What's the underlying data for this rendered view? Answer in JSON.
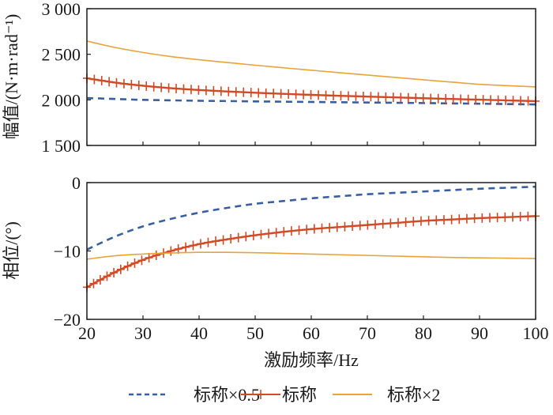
{
  "chart_data": [
    {
      "type": "line",
      "ylabel": "幅值/(N·m·rad⁻¹)",
      "xlabel": "",
      "xlim": [
        20,
        100
      ],
      "ylim": [
        1500,
        3000
      ],
      "yticks": [
        1500,
        2000,
        2500,
        3000
      ],
      "ytick_labels": [
        "1 500",
        "2 000",
        "2 500",
        "3 000"
      ],
      "xticks": [
        20,
        30,
        40,
        50,
        60,
        70,
        80,
        90,
        100
      ],
      "x": [
        20,
        25,
        30,
        35,
        40,
        45,
        50,
        55,
        60,
        65,
        70,
        75,
        80,
        85,
        90,
        95,
        100
      ],
      "series": [
        {
          "name": "标称×0.5",
          "values": [
            2020,
            2010,
            2000,
            1995,
            1990,
            1987,
            1983,
            1980,
            1977,
            1974,
            1971,
            1968,
            1965,
            1961,
            1958,
            1954,
            1950
          ]
        },
        {
          "name": "标称",
          "values": [
            2237,
            2190,
            2155,
            2128,
            2108,
            2092,
            2078,
            2066,
            2055,
            2045,
            2036,
            2027,
            2018,
            2010,
            2002,
            1994,
            1986
          ]
        },
        {
          "name": "标称×2",
          "values": [
            2645,
            2575,
            2520,
            2475,
            2440,
            2410,
            2380,
            2352,
            2325,
            2298,
            2272,
            2246,
            2220,
            2195,
            2170,
            2156,
            2142
          ]
        }
      ],
      "grid": false
    },
    {
      "type": "line",
      "ylabel": "相位/(°)",
      "xlabel": "激励频率/Hz",
      "xlim": [
        20,
        100
      ],
      "ylim": [
        -20,
        0
      ],
      "yticks": [
        -20,
        -10,
        0
      ],
      "ytick_labels": [
        "−20",
        "−10",
        "0"
      ],
      "xticks": [
        20,
        30,
        40,
        50,
        60,
        70,
        80,
        90,
        100
      ],
      "xtick_labels": [
        "20",
        "30",
        "40",
        "50",
        "60",
        "70",
        "80",
        "90",
        "100"
      ],
      "x": [
        20,
        25,
        30,
        35,
        40,
        45,
        50,
        55,
        60,
        65,
        70,
        75,
        80,
        85,
        90,
        95,
        100
      ],
      "series": [
        {
          "name": "标称×0.5",
          "values": [
            -9.8,
            -7.9,
            -6.4,
            -5.3,
            -4.4,
            -3.7,
            -3.1,
            -2.7,
            -2.3,
            -2.0,
            -1.7,
            -1.5,
            -1.3,
            -1.1,
            -0.9,
            -0.75,
            -0.6
          ]
        },
        {
          "name": "标称",
          "values": [
            -15.3,
            -13.1,
            -11.3,
            -10.0,
            -9.0,
            -8.3,
            -7.7,
            -7.2,
            -6.8,
            -6.5,
            -6.2,
            -5.9,
            -5.6,
            -5.4,
            -5.2,
            -5.05,
            -4.9
          ]
        },
        {
          "name": "标称×2",
          "values": [
            -11.2,
            -10.7,
            -10.45,
            -10.3,
            -10.2,
            -10.2,
            -10.25,
            -10.35,
            -10.45,
            -10.55,
            -10.65,
            -10.75,
            -10.85,
            -10.95,
            -11.0,
            -11.05,
            -11.1
          ]
        }
      ],
      "grid": false
    }
  ],
  "legend": {
    "position": "bottom",
    "items": [
      {
        "label": "标称×0.5",
        "color": "#3a5fa0",
        "style": "dashed"
      },
      {
        "label": "标称",
        "color": "#d14a26",
        "style": "solid-plus"
      },
      {
        "label": "标称×2",
        "color": "#e8a33a",
        "style": "solid"
      }
    ]
  },
  "colors": {
    "blue": "#3a5fa0",
    "red": "#d14a26",
    "orange": "#e8a33a",
    "axis": "#1a1a1a"
  }
}
